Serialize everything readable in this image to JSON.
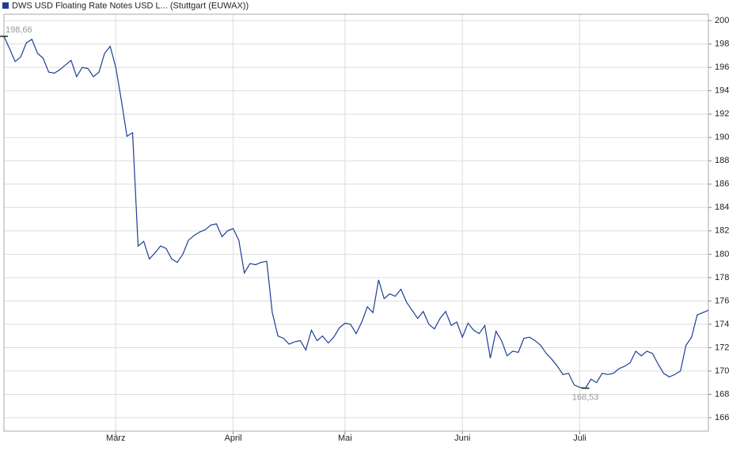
{
  "chart_data": {
    "type": "line",
    "categories": [
      null,
      null,
      null,
      null,
      null,
      null,
      null,
      null,
      null,
      null,
      null,
      null,
      null,
      null,
      null,
      null,
      null,
      null,
      null,
      null,
      "März",
      null,
      null,
      null,
      null,
      null,
      null,
      null,
      null,
      null,
      null,
      null,
      null,
      null,
      null,
      null,
      null,
      null,
      null,
      null,
      null,
      "April",
      null,
      null,
      null,
      null,
      null,
      null,
      null,
      null,
      null,
      null,
      null,
      null,
      null,
      null,
      null,
      null,
      null,
      null,
      null,
      "Mai",
      null,
      null,
      null,
      null,
      null,
      null,
      null,
      null,
      null,
      null,
      null,
      null,
      null,
      null,
      null,
      null,
      null,
      null,
      null,
      null,
      "Juni",
      null,
      null,
      null,
      null,
      null,
      null,
      null,
      null,
      null,
      null,
      null,
      null,
      null,
      null,
      null,
      null,
      null,
      null,
      null,
      null,
      "Juli",
      null,
      null,
      null,
      null,
      null,
      null,
      null,
      null,
      null,
      null,
      null,
      null,
      null,
      null,
      null,
      null,
      null,
      null,
      null,
      null,
      null,
      null,
      null
    ],
    "series": [
      {
        "name": "DWS USD Floating Rate Notes USD L... (Stuttgart (EUWAX))",
        "color": "#1c3f94",
        "values": [
          198.66,
          197.6,
          196.5,
          196.9,
          198.1,
          198.4,
          197.2,
          196.8,
          195.6,
          195.5,
          195.8,
          196.2,
          196.6,
          195.2,
          196.0,
          195.9,
          195.2,
          195.6,
          197.2,
          197.8,
          196.0,
          193.2,
          190.1,
          190.4,
          180.7,
          181.1,
          179.6,
          180.1,
          180.7,
          180.5,
          179.6,
          179.3,
          180.0,
          181.2,
          181.6,
          181.9,
          182.1,
          182.5,
          182.6,
          181.5,
          182.0,
          182.2,
          181.2,
          178.4,
          179.2,
          179.1,
          179.3,
          179.4,
          175.0,
          173.0,
          172.8,
          172.3,
          172.5,
          172.6,
          171.8,
          173.5,
          172.6,
          173.0,
          172.4,
          172.9,
          173.7,
          174.1,
          174.0,
          173.2,
          174.2,
          175.5,
          175.0,
          177.8,
          176.2,
          176.6,
          176.4,
          177.0,
          175.9,
          175.2,
          174.5,
          175.1,
          174.0,
          173.6,
          174.5,
          175.1,
          173.9,
          174.2,
          172.9,
          174.1,
          173.5,
          173.2,
          173.9,
          171.1,
          173.4,
          172.6,
          171.3,
          171.7,
          171.6,
          172.8,
          172.9,
          172.6,
          172.2,
          171.5,
          171.0,
          170.4,
          169.7,
          169.8,
          168.8,
          168.6,
          168.53,
          169.3,
          169.0,
          169.8,
          169.7,
          169.8,
          170.2,
          170.4,
          170.7,
          171.7,
          171.3,
          171.7,
          171.5,
          170.6,
          169.8,
          169.5,
          169.7,
          170.0,
          172.2,
          172.9,
          174.8,
          175.0,
          175.2
        ],
        "value_labels": [
          "198,66",
          null,
          null,
          null,
          null,
          null,
          null,
          null,
          null,
          null,
          null,
          null,
          null,
          null,
          null,
          null,
          null,
          null,
          null,
          null,
          null,
          null,
          null,
          null,
          null,
          null,
          null,
          null,
          null,
          null,
          null,
          null,
          null,
          null,
          null,
          null,
          null,
          null,
          null,
          null,
          null,
          null,
          null,
          null,
          null,
          null,
          null,
          null,
          null,
          null,
          null,
          null,
          null,
          null,
          null,
          null,
          null,
          null,
          null,
          null,
          null,
          null,
          null,
          null,
          null,
          null,
          null,
          null,
          null,
          null,
          null,
          null,
          null,
          null,
          null,
          null,
          null,
          null,
          null,
          null,
          null,
          null,
          null,
          null,
          null,
          null,
          null,
          null,
          null,
          null,
          null,
          null,
          null,
          null,
          null,
          null,
          null,
          null,
          null,
          null,
          null,
          null,
          null,
          null,
          "168,53",
          null,
          null,
          null,
          null,
          null,
          null,
          null,
          null,
          null,
          null,
          null,
          null,
          null,
          null,
          null,
          null,
          null,
          null,
          null,
          null,
          null
        ]
      }
    ],
    "ylim": [
      164.85,
      200.55
    ],
    "yticks": [
      166,
      168,
      170,
      172,
      174,
      176,
      178,
      180,
      182,
      184,
      186,
      188,
      190,
      192,
      194,
      196,
      198,
      200
    ],
    "grid": true
  }
}
